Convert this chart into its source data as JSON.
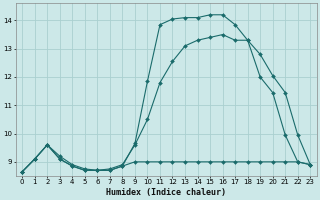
{
  "xlabel": "Humidex (Indice chaleur)",
  "bg_color": "#cce8e8",
  "grid_color": "#aad0d0",
  "line_color": "#1a6b6b",
  "xlim": [
    -0.5,
    23.5
  ],
  "ylim": [
    8.5,
    14.6
  ],
  "xticks": [
    0,
    1,
    2,
    3,
    4,
    5,
    6,
    7,
    8,
    9,
    10,
    11,
    12,
    13,
    14,
    15,
    16,
    17,
    18,
    19,
    20,
    21,
    22,
    23
  ],
  "yticks": [
    9,
    10,
    11,
    12,
    13,
    14
  ],
  "line1_x": [
    0,
    1,
    2,
    3,
    4,
    5,
    6,
    7,
    8,
    9,
    10,
    11,
    12,
    13,
    14,
    15,
    16,
    17,
    18,
    19,
    20,
    21,
    22,
    23
  ],
  "line1_y": [
    8.65,
    9.1,
    9.6,
    9.1,
    8.85,
    8.7,
    8.7,
    8.7,
    8.85,
    9.0,
    9.0,
    9.0,
    9.0,
    9.0,
    9.0,
    9.0,
    9.0,
    9.0,
    9.0,
    9.0,
    9.0,
    9.0,
    9.0,
    8.9
  ],
  "line2_x": [
    0,
    1,
    2,
    3,
    4,
    5,
    6,
    7,
    8,
    9,
    10,
    11,
    12,
    13,
    14,
    15,
    16,
    17,
    18,
    19,
    20,
    21,
    22,
    23
  ],
  "line2_y": [
    8.65,
    9.1,
    9.6,
    9.2,
    8.9,
    8.75,
    8.7,
    8.75,
    8.9,
    9.6,
    10.5,
    11.8,
    12.55,
    13.1,
    13.3,
    13.4,
    13.5,
    13.3,
    13.3,
    12.0,
    11.45,
    9.95,
    9.0,
    8.9
  ],
  "line3_x": [
    0,
    1,
    2,
    3,
    4,
    5,
    6,
    7,
    8,
    9,
    10,
    11,
    12,
    13,
    14,
    15,
    16,
    17,
    18,
    19,
    20,
    21,
    22,
    23
  ],
  "line3_y": [
    8.65,
    9.1,
    9.6,
    9.1,
    8.85,
    8.7,
    8.7,
    8.7,
    8.85,
    9.65,
    11.85,
    13.85,
    14.05,
    14.1,
    14.1,
    14.2,
    14.2,
    13.85,
    13.3,
    12.8,
    12.05,
    11.45,
    9.95,
    8.9
  ]
}
